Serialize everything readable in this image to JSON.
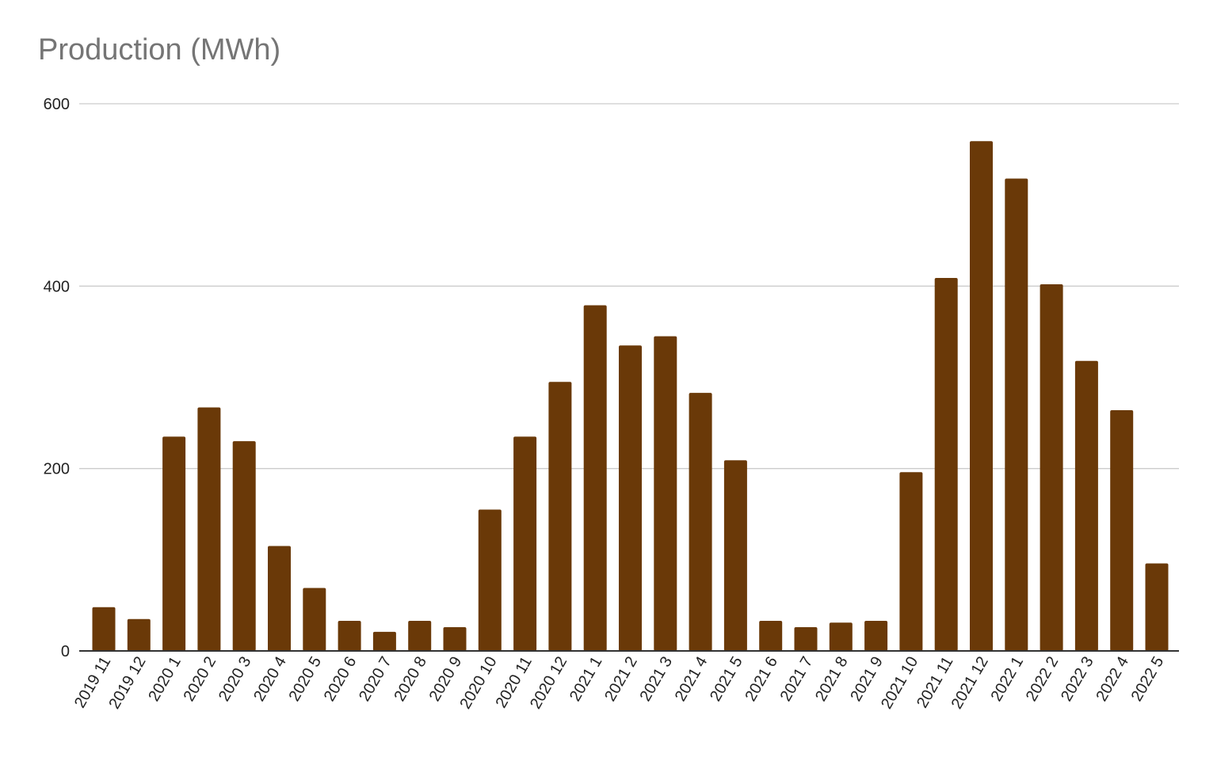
{
  "chart_data": {
    "type": "bar",
    "title": "Production (MWh)",
    "xlabel": "",
    "ylabel": "",
    "ylim": [
      0,
      600
    ],
    "yticks": [
      0,
      200,
      400,
      600
    ],
    "grid": true,
    "legend": "none",
    "bar_color": "#6a3908",
    "grid_color": "#cccccc",
    "title_color": "#757575",
    "categories": [
      "2019 11",
      "2019 12",
      "2020 1",
      "2020 2",
      "2020 3",
      "2020 4",
      "2020 5",
      "2020 6",
      "2020 7",
      "2020 8",
      "2020 9",
      "2020 10",
      "2020 11",
      "2020 12",
      "2021 1",
      "2021 2",
      "2021 3",
      "2021 4",
      "2021 5",
      "2021 6",
      "2021 7",
      "2021 8",
      "2021 9",
      "2021 10",
      "2021 11",
      "2021 12",
      "2022 1",
      "2022 2",
      "2022 3",
      "2022 4",
      "2022 5"
    ],
    "values": [
      48,
      35,
      235,
      267,
      230,
      115,
      69,
      33,
      21,
      33,
      26,
      155,
      235,
      295,
      379,
      335,
      345,
      283,
      209,
      33,
      26,
      31,
      33,
      196,
      409,
      559,
      518,
      402,
      318,
      264,
      96
    ]
  }
}
